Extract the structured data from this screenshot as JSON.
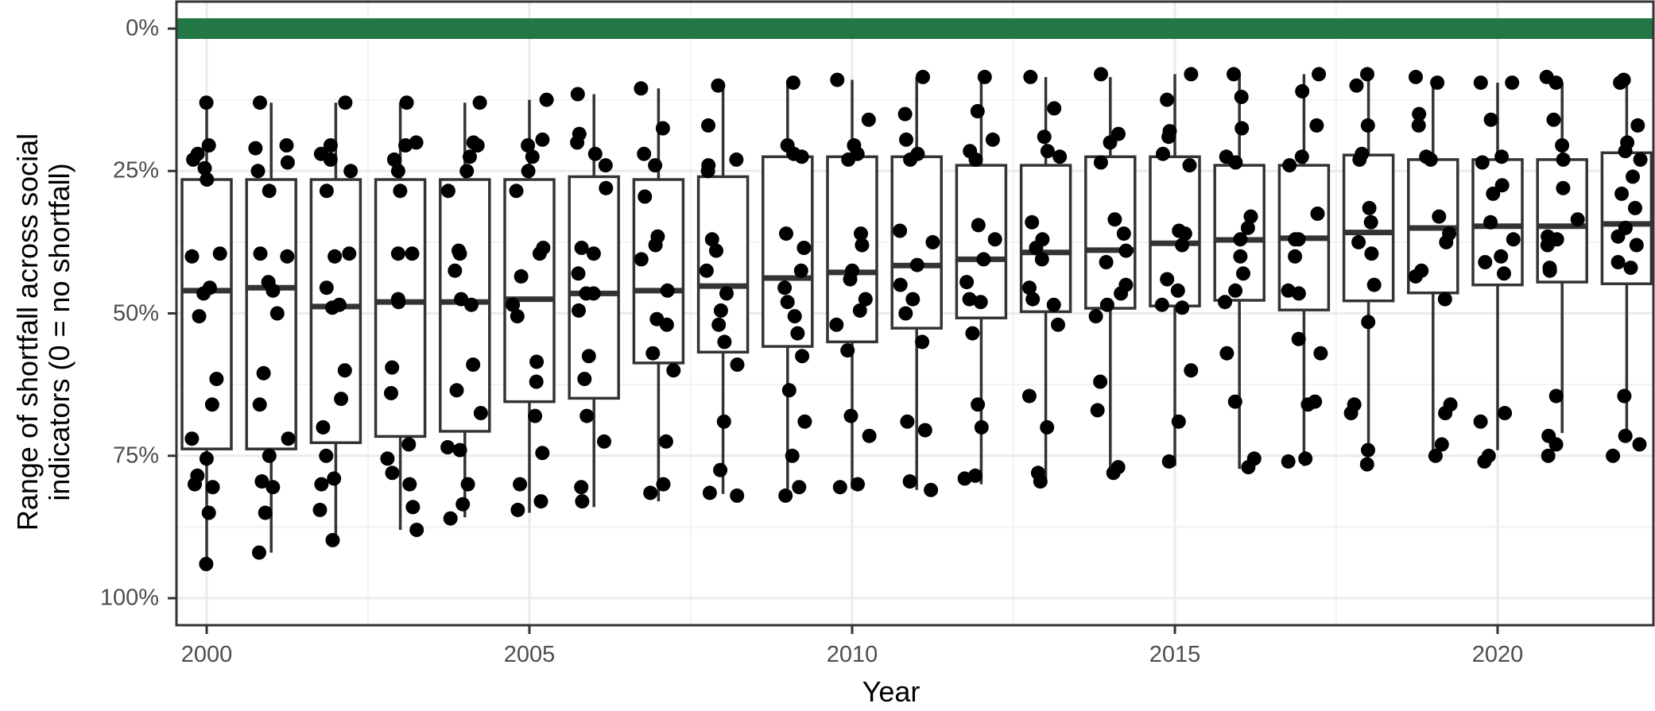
{
  "chart_data": {
    "type": "box",
    "title": "",
    "xlabel": "Year",
    "ylabel": "Range of shortfall across social indicators (0 = no shortfall)",
    "ylabel_lines": [
      "Range of shortfall across social",
      "indicators (0 = no shortfall)"
    ],
    "y_axis_reversed": true,
    "ylim": [
      0,
      100
    ],
    "y_ticks": [
      {
        "value": 0,
        "label": "0%"
      },
      {
        "value": 25,
        "label": "25%"
      },
      {
        "value": 50,
        "label": "50%"
      },
      {
        "value": 75,
        "label": "75%"
      },
      {
        "value": 100,
        "label": "100%"
      }
    ],
    "x_ticks": [
      {
        "value": 2000,
        "label": "2000"
      },
      {
        "value": 2005,
        "label": "2005"
      },
      {
        "value": 2010,
        "label": "2010"
      },
      {
        "value": 2015,
        "label": "2015"
      },
      {
        "value": 2020,
        "label": "2020"
      }
    ],
    "xlim": [
      1999.4,
      2022.4
    ],
    "grid": true,
    "reference_band": {
      "value": 0,
      "color": "#237745",
      "label": "no shortfall"
    },
    "box_color": "#333333",
    "point_color": "#000000",
    "categories": [
      2000,
      2001,
      2002,
      2003,
      2004,
      2005,
      2006,
      2007,
      2008,
      2009,
      2010,
      2011,
      2012,
      2013,
      2014,
      2015,
      2016,
      2017,
      2018,
      2019,
      2020,
      2021,
      2022
    ],
    "series": [
      {
        "year": 2000,
        "whisker_low": 13,
        "q1": 26.5,
        "median": 46,
        "q3": 73.8,
        "whisker_high": 94,
        "points": [
          13,
          20.5,
          23,
          22,
          24.5,
          26.5,
          40,
          39.5,
          45.5,
          46.5,
          50.5,
          61.5,
          66,
          72,
          75.5,
          78.5,
          80.5,
          80,
          85,
          94
        ]
      },
      {
        "year": 2001,
        "whisker_low": 13,
        "q1": 26.5,
        "median": 45.5,
        "q3": 73.8,
        "whisker_high": 92,
        "points": [
          13,
          21,
          20.5,
          23.5,
          25,
          28.5,
          40,
          39.5,
          44.5,
          46,
          50,
          60.5,
          66,
          72,
          75,
          79.5,
          80.5,
          85,
          92
        ]
      },
      {
        "year": 2002,
        "whisker_low": 13,
        "q1": 26.5,
        "median": 48.8,
        "q3": 72.7,
        "whisker_high": 89.8,
        "points": [
          13,
          20.5,
          23,
          22,
          25,
          28.5,
          39.5,
          40,
          45.5,
          48.5,
          49,
          60,
          65,
          70,
          75,
          79,
          80,
          84.5,
          89.8
        ]
      },
      {
        "year": 2003,
        "whisker_low": 13,
        "q1": 26.5,
        "median": 48,
        "q3": 71.6,
        "whisker_high": 88,
        "points": [
          13,
          20.5,
          20,
          23,
          25,
          28.5,
          39.5,
          39.5,
          48,
          47.5,
          59.5,
          64,
          73,
          75.5,
          78,
          80,
          84,
          88
        ]
      },
      {
        "year": 2004,
        "whisker_low": 13,
        "q1": 26.5,
        "median": 48,
        "q3": 70.7,
        "whisker_high": 85.8,
        "points": [
          13,
          20.5,
          20,
          22.5,
          25,
          28.5,
          39,
          39.5,
          42.5,
          47.5,
          48.5,
          59,
          63.5,
          67.5,
          73.5,
          74,
          80,
          83.5,
          86
        ]
      },
      {
        "year": 2005,
        "whisker_low": 12.5,
        "q1": 26.5,
        "median": 47.5,
        "q3": 65.5,
        "whisker_high": 85,
        "points": [
          12.5,
          20.5,
          19.5,
          22.5,
          25,
          28.5,
          39.5,
          38.5,
          43.5,
          48.5,
          50.5,
          58.5,
          62,
          68,
          74.5,
          80,
          83,
          84.5
        ]
      },
      {
        "year": 2006,
        "whisker_low": 11.5,
        "q1": 26,
        "median": 46.5,
        "q3": 64.9,
        "whisker_high": 84,
        "points": [
          11.5,
          18.5,
          20,
          22,
          24,
          28,
          38.5,
          39.5,
          43,
          46.5,
          46.5,
          49.5,
          57.5,
          61.5,
          68,
          72.5,
          80.5,
          83
        ]
      },
      {
        "year": 2007,
        "whisker_low": 10.5,
        "q1": 26.5,
        "median": 46,
        "q3": 58.7,
        "whisker_high": 83,
        "points": [
          10.5,
          17.5,
          22,
          24,
          29.5,
          36.5,
          38,
          40.5,
          46,
          51,
          52,
          57,
          60,
          72.5,
          80,
          81.5
        ]
      },
      {
        "year": 2008,
        "whisker_low": 10,
        "q1": 26,
        "median": 45.2,
        "q3": 56.8,
        "whisker_high": 81.7,
        "points": [
          10,
          17,
          23,
          24,
          25,
          37,
          39,
          42.5,
          46.5,
          49.5,
          52,
          55,
          59,
          69,
          77.5,
          81.5,
          82
        ]
      },
      {
        "year": 2009,
        "whisker_low": 9.5,
        "q1": 22.5,
        "median": 43.8,
        "q3": 55.8,
        "whisker_high": 80.8,
        "points": [
          9.5,
          20.5,
          22.5,
          22,
          36,
          38.5,
          42.5,
          45.5,
          48,
          50.5,
          53.5,
          57.5,
          63.5,
          69,
          75,
          80.5,
          82
        ]
      },
      {
        "year": 2010,
        "whisker_low": 9,
        "q1": 22.5,
        "median": 42.8,
        "q3": 55,
        "whisker_high": 80.8,
        "points": [
          9,
          16,
          20.5,
          22,
          23,
          36,
          38,
          42.5,
          44,
          47.5,
          49.5,
          52,
          56.5,
          68,
          71.5,
          80,
          80.5
        ]
      },
      {
        "year": 2011,
        "whisker_low": 8.5,
        "q1": 22.5,
        "median": 41.6,
        "q3": 52.6,
        "whisker_high": 81,
        "points": [
          8.5,
          15,
          19.5,
          22,
          23,
          35.5,
          37.5,
          41.5,
          45,
          47.5,
          50,
          55,
          69,
          70.5,
          79.5,
          81
        ]
      },
      {
        "year": 2012,
        "whisker_low": 8.5,
        "q1": 24,
        "median": 40.5,
        "q3": 50.8,
        "whisker_high": 80,
        "points": [
          8.5,
          14.5,
          19.5,
          21.5,
          23,
          34.5,
          37,
          40.5,
          44.5,
          47.5,
          48,
          53.5,
          66,
          70,
          78.5,
          79
        ]
      },
      {
        "year": 2013,
        "whisker_low": 8.5,
        "q1": 24,
        "median": 39.3,
        "q3": 49.7,
        "whisker_high": 80,
        "points": [
          8.5,
          14,
          19,
          21.5,
          22.5,
          34,
          37,
          38.5,
          40.5,
          45.5,
          47.5,
          48.5,
          52,
          64.5,
          70,
          78,
          79.5
        ]
      },
      {
        "year": 2014,
        "whisker_low": 8.5,
        "q1": 22.5,
        "median": 38.9,
        "q3": 49.1,
        "whisker_high": 77.4,
        "points": [
          8,
          18.5,
          20,
          23.5,
          33.5,
          36,
          39,
          41,
          45,
          46.5,
          48.5,
          50.5,
          62,
          67,
          77,
          78
        ]
      },
      {
        "year": 2015,
        "whisker_low": 8,
        "q1": 22.5,
        "median": 37.7,
        "q3": 48.7,
        "whisker_high": 76.8,
        "points": [
          8,
          12.5,
          18,
          19,
          22,
          24,
          35.5,
          36,
          38,
          44,
          46,
          48.5,
          49,
          60,
          69,
          76
        ]
      },
      {
        "year": 2016,
        "whisker_low": 8,
        "q1": 24,
        "median": 37.1,
        "q3": 47.7,
        "whisker_high": 77.3,
        "points": [
          8,
          12,
          17.5,
          22.5,
          23.5,
          33,
          35,
          37,
          40,
          43,
          46,
          48,
          57,
          65.5,
          75.5,
          77
        ]
      },
      {
        "year": 2017,
        "whisker_low": 8,
        "q1": 24,
        "median": 36.8,
        "q3": 49.4,
        "whisker_high": 76.8,
        "points": [
          8,
          11,
          17,
          22.5,
          24,
          32.5,
          37,
          37,
          40,
          46,
          46.5,
          54.5,
          57,
          65.5,
          66,
          75.5,
          76
        ]
      },
      {
        "year": 2018,
        "whisker_low": 8,
        "q1": 22.2,
        "median": 35.8,
        "q3": 47.8,
        "whisker_high": 74.5,
        "points": [
          8,
          10,
          17,
          22,
          23,
          31.5,
          34,
          37.5,
          39.5,
          45,
          51.5,
          66,
          67.5,
          74,
          76.5
        ]
      },
      {
        "year": 2019,
        "whisker_low": 9.5,
        "q1": 23,
        "median": 35,
        "q3": 46.4,
        "whisker_high": 74.8,
        "points": [
          8.5,
          9.5,
          15,
          17,
          22.5,
          23,
          33,
          36,
          37.5,
          42.5,
          43.5,
          47.5,
          66,
          67.5,
          73,
          75
        ]
      },
      {
        "year": 2020,
        "whisker_low": 9.5,
        "q1": 23,
        "median": 34.7,
        "q3": 45,
        "whisker_high": 74,
        "points": [
          9.5,
          9.5,
          16,
          22.5,
          23.5,
          27.5,
          29,
          34,
          37,
          40,
          41,
          43,
          67.5,
          69,
          75,
          76
        ]
      },
      {
        "year": 2021,
        "whisker_low": 9.5,
        "q1": 23,
        "median": 34.7,
        "q3": 44.5,
        "whisker_high": 71,
        "points": [
          9.5,
          8.5,
          16,
          20.5,
          23,
          28,
          33.5,
          36.5,
          37,
          38,
          42,
          42.5,
          64.5,
          71.5,
          73,
          75
        ]
      },
      {
        "year": 2022,
        "whisker_low": 9,
        "q1": 21.8,
        "median": 34.3,
        "q3": 44.8,
        "whisker_high": 72.7,
        "points": [
          9,
          9.5,
          17,
          21.5,
          20,
          23,
          26,
          29,
          31.5,
          35,
          36.5,
          38,
          41,
          42,
          64.5,
          71.5,
          73,
          75
        ]
      }
    ]
  }
}
